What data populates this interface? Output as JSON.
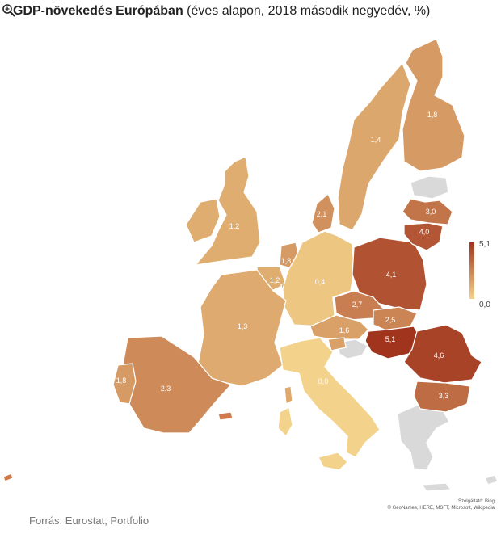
{
  "title": {
    "bold": "GDP-növekedés Európában",
    "rest": " (éves alapon, 2018 második negyedév, %)"
  },
  "legend": {
    "max": "5,1",
    "min": "0,0",
    "color_max": "#a1341d",
    "color_min": "#f3d28b"
  },
  "regions": [
    {
      "key": "finland",
      "value": 1.8,
      "label": "1,8"
    },
    {
      "key": "sweden",
      "value": 1.4,
      "label": "1,4"
    },
    {
      "key": "denmark",
      "value": 2.1,
      "label": "2,1"
    },
    {
      "key": "uk",
      "value": 1.2,
      "label": "1,2"
    },
    {
      "key": "netherlands",
      "value": 1.8,
      "label": "1,8"
    },
    {
      "key": "belgium",
      "value": 1.2,
      "label": "1,2"
    },
    {
      "key": "germany",
      "value": 0.4,
      "label": "0,4"
    },
    {
      "key": "france",
      "value": 1.3,
      "label": "1,3"
    },
    {
      "key": "poland",
      "value": 4.1,
      "label": "4,1"
    },
    {
      "key": "latvia",
      "value": 3.0,
      "label": "3,0"
    },
    {
      "key": "lithuania",
      "value": 4.0,
      "label": "4,0"
    },
    {
      "key": "czechia",
      "value": 2.7,
      "label": "2,7"
    },
    {
      "key": "slovakia",
      "value": 2.5,
      "label": "2,5"
    },
    {
      "key": "austria",
      "value": 1.6,
      "label": "1,6"
    },
    {
      "key": "hungary",
      "value": 5.1,
      "label": "5,1"
    },
    {
      "key": "romania",
      "value": 4.6,
      "label": "4,6"
    },
    {
      "key": "bulgaria",
      "value": 3.3,
      "label": "3,3"
    },
    {
      "key": "italy",
      "value": 0.0,
      "label": "0,0"
    },
    {
      "key": "spain",
      "value": 2.3,
      "label": "2,3"
    },
    {
      "key": "portugal",
      "value": 1.8,
      "label": "1,8"
    },
    {
      "key": "ireland",
      "value": 1.2,
      "label": ""
    },
    {
      "key": "slovenia",
      "value": 1.6,
      "label": ""
    },
    {
      "key": "luxembourg",
      "value": 1.2,
      "label": ""
    }
  ],
  "attribution": {
    "line1": "Szolgáltató: Bing",
    "line2": "© GeoNames, HERE, MSFT, Microsoft, Wikipedia"
  },
  "source": "Forrás: Eurostat, Portfolio"
}
